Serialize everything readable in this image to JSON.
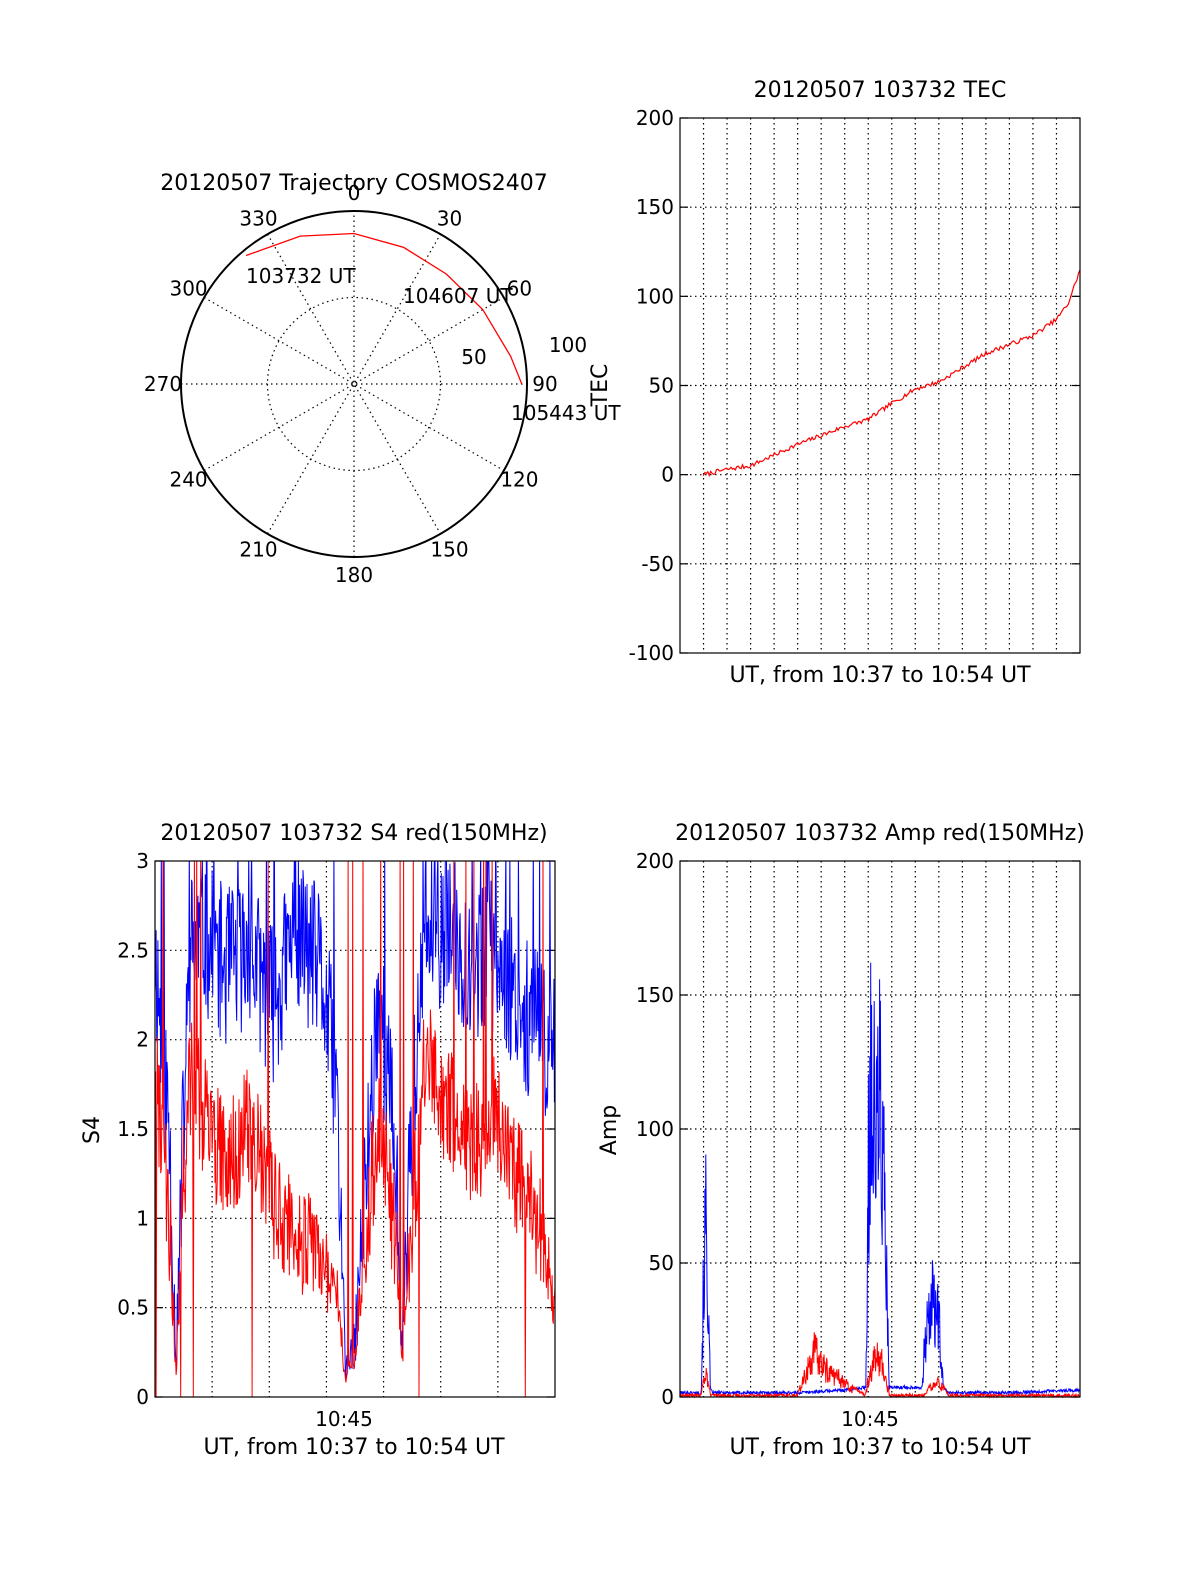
{
  "chart_data": [
    {
      "type": "scatter",
      "subtype": "polar-trajectory",
      "title": "20120507 Trajectory COSMOS2407",
      "azimuth_labels": [
        "0",
        "30",
        "60",
        "90",
        "120",
        "150",
        "180",
        "210",
        "240",
        "270",
        "300",
        "330"
      ],
      "radial_labels": [
        "50",
        "100"
      ],
      "radial_range": [
        0,
        100
      ],
      "annotations": [
        "103732 UT",
        "104607 UT",
        "105443 UT"
      ],
      "series": [
        {
          "color": "#ff0000",
          "points_az_r": [
            [
              -40,
              97
            ],
            [
              -20,
              91
            ],
            [
              0,
              87
            ],
            [
              20,
              84
            ],
            [
              40,
              83
            ],
            [
              60,
              86
            ],
            [
              80,
              92
            ],
            [
              90,
              97
            ]
          ]
        }
      ],
      "grid": true
    },
    {
      "type": "line",
      "title": "20120507 103732 TEC",
      "xlabel": "UT, from 10:37 to 10:54 UT",
      "ylabel": "TEC",
      "xlim": [
        10.6167,
        10.9
      ],
      "ylim": [
        -100,
        200
      ],
      "yticks": [
        "-100",
        "-50",
        "0",
        "50",
        "100",
        "150",
        "200"
      ],
      "grid": true,
      "series": [
        {
          "color": "#ff0000",
          "x": [
            10.6333,
            10.65,
            10.6667,
            10.6833,
            10.7,
            10.7167,
            10.7333,
            10.75,
            10.7667,
            10.7833,
            10.8,
            10.8167,
            10.8333,
            10.85,
            10.8667,
            10.8833,
            10.8917,
            10.9
          ],
          "y": [
            0,
            3,
            5,
            11,
            17,
            22,
            27,
            31,
            40,
            48,
            52,
            60,
            68,
            73,
            78,
            87,
            96,
            115
          ]
        }
      ]
    },
    {
      "type": "line",
      "title": "20120507 103732 S4 red(150MHz)",
      "xlabel": "UT, from 10:37 to 10:54 UT",
      "ylabel": "S4",
      "xlim": [
        10.6167,
        10.9
      ],
      "ylim": [
        0,
        3
      ],
      "xticks": [
        "10:45"
      ],
      "yticks": [
        "0",
        "0.5",
        "1",
        "1.5",
        "2",
        "2.5",
        "3"
      ],
      "grid": true,
      "series": [
        {
          "color": "#0000ff",
          "x": [
            10.6167,
            10.6267,
            10.6317,
            10.6367,
            10.6417,
            10.65,
            10.6667,
            10.6833,
            10.7,
            10.7167,
            10.7333,
            10.745,
            10.7517,
            10.7583,
            10.775,
            10.7867,
            10.7917,
            10.7967,
            10.8083,
            10.825,
            10.8417,
            10.8583,
            10.875,
            10.8917,
            10.9
          ],
          "y": [
            2.5,
            1.5,
            0.2,
            1.5,
            2.5,
            2.6,
            2.4,
            2.5,
            2.2,
            2.6,
            2.4,
            1.8,
            0.15,
            0.3,
            2.3,
            1.4,
            0.3,
            1.3,
            2.6,
            2.6,
            2.4,
            2.5,
            2.2,
            2.0,
            2.0
          ]
        },
        {
          "color": "#ff0000",
          "x": [
            10.6167,
            10.6267,
            10.6317,
            10.6367,
            10.6417,
            10.65,
            10.6667,
            10.6833,
            10.7,
            10.7167,
            10.7333,
            10.745,
            10.7517,
            10.7583,
            10.775,
            10.7867,
            10.7917,
            10.7967,
            10.8083,
            10.825,
            10.8417,
            10.8583,
            10.875,
            10.8917,
            10.9
          ],
          "y": [
            1.8,
            1.0,
            0.12,
            1.2,
            1.8,
            1.6,
            1.3,
            1.5,
            1.1,
            0.9,
            0.8,
            0.6,
            0.1,
            0.25,
            1.6,
            0.9,
            0.2,
            0.8,
            1.9,
            1.6,
            1.4,
            1.6,
            1.2,
            0.9,
            0.5
          ]
        }
      ]
    },
    {
      "type": "line",
      "title": "20120507 103732 Amp red(150MHz)",
      "xlabel": "UT, from 10:37 to 10:54 UT",
      "ylabel": "Amp",
      "xlim": [
        10.6167,
        10.9
      ],
      "ylim": [
        0,
        200
      ],
      "xticks": [
        "10:45"
      ],
      "yticks": [
        "0",
        "50",
        "100",
        "150",
        "200"
      ],
      "grid": true,
      "series": [
        {
          "color": "#0000ff",
          "x": [
            10.6167,
            10.6317,
            10.6333,
            10.635,
            10.6367,
            10.6383,
            10.64,
            10.7,
            10.7333,
            10.7483,
            10.75,
            10.7517,
            10.755,
            10.7583,
            10.7617,
            10.765,
            10.7883,
            10.79,
            10.7933,
            10.7967,
            10.8,
            10.8033,
            10.8067,
            10.85,
            10.9
          ],
          "y": [
            1,
            1,
            60,
            98,
            50,
            2,
            1,
            1,
            2,
            3,
            120,
            188,
            140,
            170,
            100,
            3,
            3,
            30,
            45,
            55,
            40,
            3,
            1,
            1,
            2
          ]
        },
        {
          "color": "#ff0000",
          "x": [
            10.6167,
            10.6317,
            10.6333,
            10.635,
            10.6367,
            10.6383,
            10.7,
            10.7117,
            10.72,
            10.73,
            10.74,
            10.748,
            10.75,
            10.755,
            10.76,
            10.765,
            10.79,
            10.795,
            10.8,
            10.8067,
            10.9
          ],
          "y": [
            0,
            0,
            8,
            16,
            6,
            0,
            0,
            25,
            15,
            10,
            3,
            0,
            10,
            22,
            18,
            0,
            0,
            5,
            8,
            0,
            0
          ]
        }
      ]
    }
  ]
}
